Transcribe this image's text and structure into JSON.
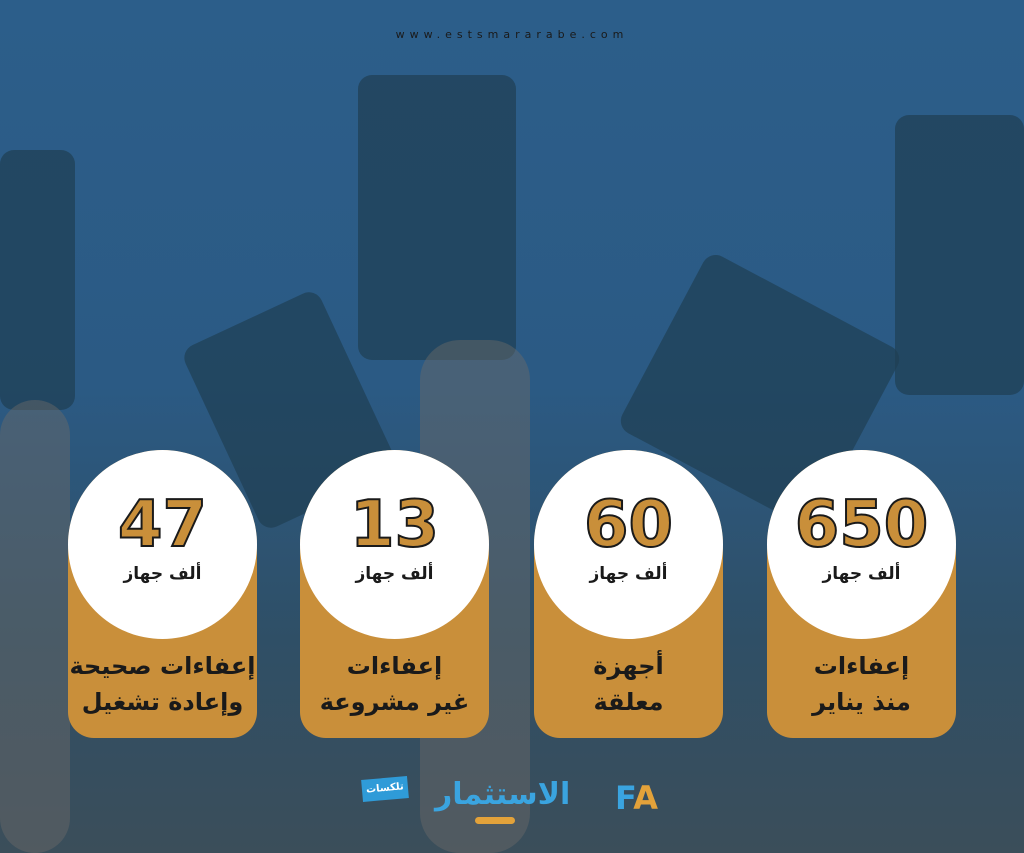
{
  "header": {
    "url": "www.estsmararabe.com"
  },
  "cards": [
    {
      "value": "47",
      "unit": "ألف جهاز",
      "label_line1": "إعفاءات صحيحة",
      "label_line2": "وإعادة تشغيل"
    },
    {
      "value": "13",
      "unit": "ألف جهاز",
      "label_line1": "إعفاءات",
      "label_line2": "غير مشروعة"
    },
    {
      "value": "60",
      "unit": "ألف جهاز",
      "label_line1": "أجهزة",
      "label_line2": "معلقة"
    },
    {
      "value": "650",
      "unit": "ألف جهاز",
      "label_line1": "إعفاءات",
      "label_line2": "منذ يناير"
    }
  ],
  "logos": {
    "telecom": "تلكسات",
    "estsmar": "الاستثمار",
    "fa_letters": [
      "F",
      "A"
    ]
  },
  "colors": {
    "accent": "#c98f3a",
    "background": "#2c5e8a",
    "logo_blue": "#3aa4e0"
  }
}
